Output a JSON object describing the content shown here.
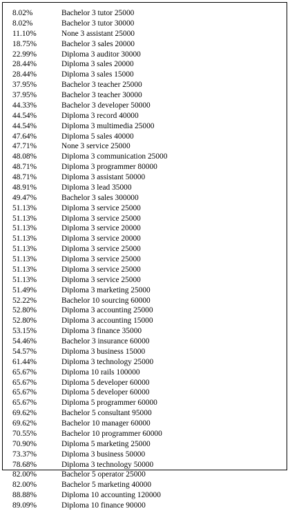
{
  "rows": [
    {
      "pct": "8.02%",
      "desc": "Bachelor 3 tutor 25000"
    },
    {
      "pct": "8.02%",
      "desc": "Bachelor 3 tutor 30000"
    },
    {
      "pct": "11.10%",
      "desc": "None 3 assistant 25000"
    },
    {
      "pct": "18.75%",
      "desc": "Bachelor 3 sales 20000"
    },
    {
      "pct": "22.99%",
      "desc": "Diploma 3 auditor 30000"
    },
    {
      "pct": "28.44%",
      "desc": "Diploma 3 sales 20000"
    },
    {
      "pct": "28.44%",
      "desc": "Diploma 3 sales 15000"
    },
    {
      "pct": "37.95%",
      "desc": "Bachelor 3 teacher 25000"
    },
    {
      "pct": "37.95%",
      "desc": "Bachelor 3 teacher 30000"
    },
    {
      "pct": "44.33%",
      "desc": "Bachelor 3 developer 50000"
    },
    {
      "pct": "44.54%",
      "desc": "Diploma 3 record 40000"
    },
    {
      "pct": "44.54%",
      "desc": "Diploma 3 multimedia 25000"
    },
    {
      "pct": "47.64%",
      "desc": "Diploma 5 sales 40000"
    },
    {
      "pct": "47.71%",
      "desc": "None 3 service 25000"
    },
    {
      "pct": "48.08%",
      "desc": "Diploma 3 communication 25000"
    },
    {
      "pct": "48.71%",
      "desc": "Diploma 3 programmer 80000"
    },
    {
      "pct": "48.71%",
      "desc": "Diploma 3 assistant 50000"
    },
    {
      "pct": "48.91%",
      "desc": "Diploma 3 lead 35000"
    },
    {
      "pct": "49.47%",
      "desc": "Bachelor 3 sales 300000"
    },
    {
      "pct": "51.13%",
      "desc": "Diploma 3 service 25000"
    },
    {
      "pct": "51.13%",
      "desc": "Diploma 3 service 25000"
    },
    {
      "pct": "51.13%",
      "desc": "Diploma 3 service 20000"
    },
    {
      "pct": "51.13%",
      "desc": "Diploma 3 service 20000"
    },
    {
      "pct": "51.13%",
      "desc": "Diploma 3 service 25000"
    },
    {
      "pct": "51.13%",
      "desc": "Diploma 3 service 25000"
    },
    {
      "pct": "51.13%",
      "desc": "Diploma 3 service 25000"
    },
    {
      "pct": "51.13%",
      "desc": "Diploma 3 service 25000"
    },
    {
      "pct": "51.49%",
      "desc": "Diploma 3 marketing 25000"
    },
    {
      "pct": "52.22%",
      "desc": "Bachelor 10 sourcing 60000"
    },
    {
      "pct": "52.80%",
      "desc": "Diploma 3 accounting 25000"
    },
    {
      "pct": "52.80%",
      "desc": "Diploma 3 accounting 15000"
    },
    {
      "pct": "53.15%",
      "desc": "Diploma 3 finance 35000"
    },
    {
      "pct": "54.46%",
      "desc": "Bachelor 3 insurance 60000"
    },
    {
      "pct": "54.57%",
      "desc": "Diploma 3 business 15000"
    },
    {
      "pct": "61.44%",
      "desc": "Diploma 3 technology 25000"
    },
    {
      "pct": "65.67%",
      "desc": "Diploma 10 rails 100000"
    },
    {
      "pct": "65.67%",
      "desc": "Diploma 5 developer 60000"
    },
    {
      "pct": "65.67%",
      "desc": "Diploma 5 developer 60000"
    },
    {
      "pct": "65.67%",
      "desc": "Diploma 5 programmer 60000"
    },
    {
      "pct": "69.62%",
      "desc": "Bachelor 5 consultant 95000"
    },
    {
      "pct": "69.62%",
      "desc": "Bachelor 10 manager 60000"
    },
    {
      "pct": "70.55%",
      "desc": "Bachelor 10 programmer 60000"
    },
    {
      "pct": "70.90%",
      "desc": "Diploma 5 marketing 25000"
    },
    {
      "pct": "73.37%",
      "desc": "Diploma 3 business 50000"
    },
    {
      "pct": "78.68%",
      "desc": "Diploma 3 technology 50000"
    },
    {
      "pct": "82.00%",
      "desc": "Bachelor 5 operator 25000"
    },
    {
      "pct": "82.00%",
      "desc": "Bachelor 5 marketing 40000"
    },
    {
      "pct": "88.88%",
      "desc": "Diploma 10 accounting 120000"
    },
    {
      "pct": "89.09%",
      "desc": "Diploma 10 finance 90000"
    }
  ]
}
